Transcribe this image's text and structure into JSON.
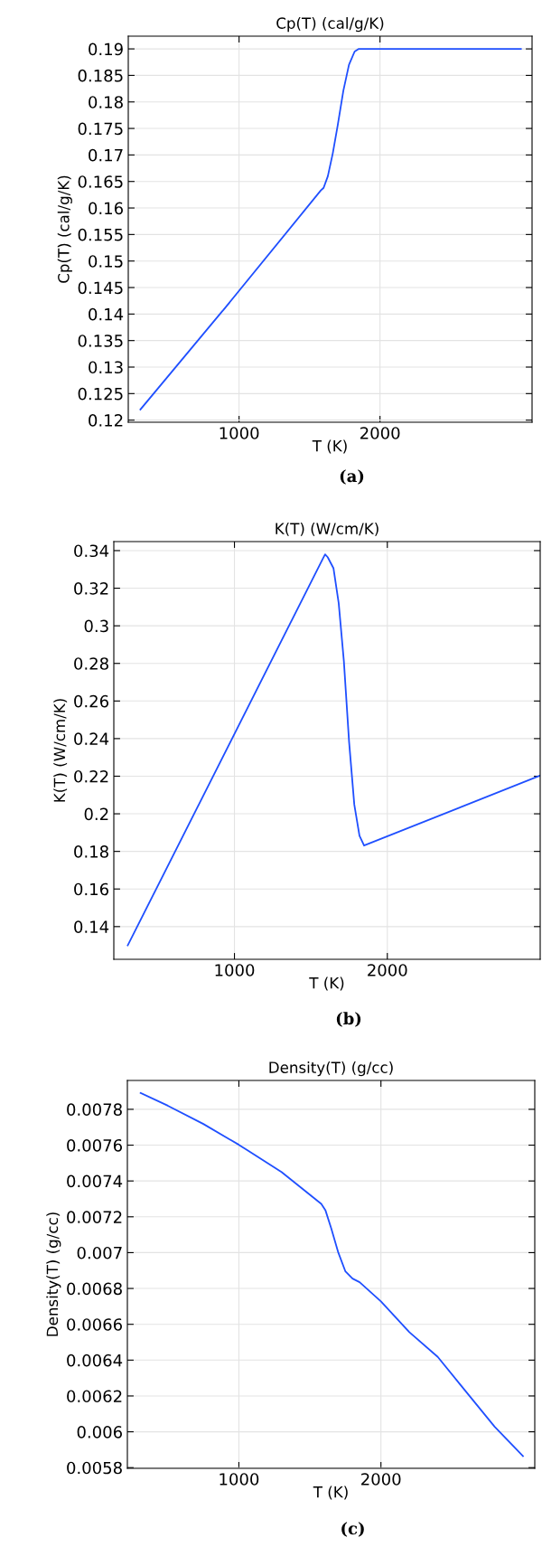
{
  "chart_data": [
    {
      "type": "line",
      "title": "Cp(T) (cal/g/K)",
      "xlabel": "T (K)",
      "ylabel": "Cp(T) (cal/g/K)",
      "annotations": [
        "(a)"
      ],
      "grid": true,
      "xlim": [
        214,
        3079
      ],
      "xticks": [
        1000,
        2000
      ],
      "ylim": [
        0.1196,
        0.1924
      ],
      "yticks": [
        0.12,
        0.125,
        0.13,
        0.135,
        0.14,
        0.145,
        0.15,
        0.155,
        0.16,
        0.165,
        0.17,
        0.175,
        0.18,
        0.185,
        0.19
      ],
      "series": [
        {
          "color": "#1f4fff",
          "x": [
            300,
            880,
            890,
            1580,
            1600,
            1630,
            1665,
            1700,
            1740,
            1780,
            1820,
            1850,
            3000
          ],
          "values": [
            0.122,
            0.1405,
            0.1408,
            0.1633,
            0.1638,
            0.166,
            0.1703,
            0.1756,
            0.1821,
            0.187,
            0.1895,
            0.19,
            0.19
          ]
        }
      ]
    },
    {
      "type": "line",
      "title": "K(T) (W/cm/K)",
      "xlabel": "T (K)",
      "ylabel": "K(T) (W/cm/K)",
      "annotations": [
        "(b)"
      ],
      "grid": true,
      "xlim": [
        211,
        3000
      ],
      "xticks": [
        1000,
        2000
      ],
      "ylim": [
        0.1226,
        0.3448
      ],
      "yticks": [
        0.14,
        0.16,
        0.18,
        0.2,
        0.22,
        0.24,
        0.26,
        0.28,
        0.3,
        0.32,
        0.34
      ],
      "series": [
        {
          "color": "#1f4fff",
          "x": [
            302,
            1580,
            1593,
            1610,
            1648,
            1682,
            1716,
            1750,
            1784,
            1818,
            1848,
            3000
          ],
          "values": [
            0.13,
            0.336,
            0.338,
            0.3365,
            0.3306,
            0.312,
            0.281,
            0.2382,
            0.2049,
            0.1883,
            0.1831,
            0.2204
          ]
        }
      ]
    },
    {
      "type": "line",
      "title": "Density(T) (g/cc)",
      "xlabel": "T (K)",
      "ylabel": "Density(T) (g/cc)",
      "annotations": [
        "(c)"
      ],
      "grid": true,
      "xlim": [
        215,
        3083
      ],
      "xticks": [
        1000,
        2000
      ],
      "ylim": [
        0.005796,
        0.007961
      ],
      "yticks": [
        0.0058,
        0.006,
        0.0062,
        0.0064,
        0.0066,
        0.0068,
        0.007,
        0.0072,
        0.0074,
        0.0076,
        0.0078
      ],
      "series": [
        {
          "color": "#1f4fff",
          "x": [
            308,
            500,
            750,
            1000,
            1300,
            1580,
            1610,
            1650,
            1700,
            1750,
            1800,
            1850,
            2000,
            2200,
            2400,
            2600,
            2800,
            3000
          ],
          "values": [
            0.007891,
            0.00782,
            0.007718,
            0.007602,
            0.00745,
            0.007272,
            0.007235,
            0.007136,
            0.007,
            0.006895,
            0.006855,
            0.006835,
            0.006728,
            0.006556,
            0.006418,
            0.006223,
            0.006029,
            0.005864
          ]
        }
      ]
    }
  ]
}
